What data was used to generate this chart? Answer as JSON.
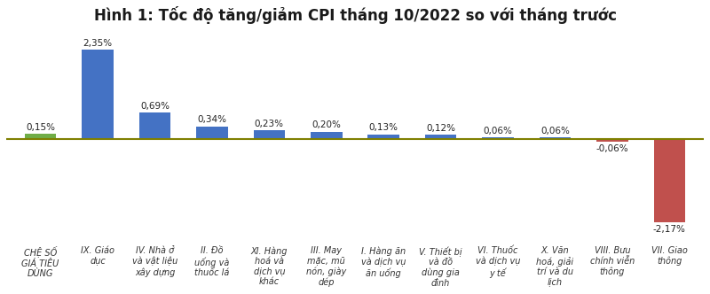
{
  "title": "Hình 1: Tốc độ tăng/giảm CPI tháng 10/2022 so với tháng trước",
  "categories": [
    "CHỆ SỐ\nGIÁ TIÊU\nDÙNG",
    "IX. Giáo\ndục",
    "IV. Nhà ở\nvà vật liệu\nxây dựng",
    "II. Đồ\nuống và\nthuốc lá",
    "XI. Hàng\nhoá và\ndịch vụ\nkhác",
    "III. May\nmặc, mũ\nnón, giày\ndép",
    "I. Hàng ăn\nvà dịch vụ\năn uống",
    "V. Thiết bị\nvà đồ\ndùng gia\nđình",
    "VI. Thuốc\nvà dịch vụ\ny tế",
    "X. Văn\nhoá, giải\ntrí và du\nlịch",
    "VIII. Bưu\nchính viễn\nthông",
    "VII. Giao\nthông"
  ],
  "values": [
    0.15,
    2.35,
    0.69,
    0.34,
    0.23,
    0.2,
    0.13,
    0.12,
    0.06,
    0.06,
    -0.06,
    -2.17
  ],
  "bar_colors": [
    "#70ad47",
    "#4472c4",
    "#4472c4",
    "#4472c4",
    "#4472c4",
    "#4472c4",
    "#4472c4",
    "#4472c4",
    "#4472c4",
    "#4472c4",
    "#c0504d",
    "#c0504d"
  ],
  "value_labels": [
    "0,15%",
    "2,35%",
    "0,69%",
    "0,34%",
    "0,23%",
    "0,20%",
    "0,13%",
    "0,12%",
    "0,06%",
    "0,06%",
    "-0,06%",
    "-2,17%"
  ],
  "ylim": [
    -2.7,
    2.85
  ],
  "background_color": "#ffffff",
  "title_fontsize": 12,
  "label_fontsize": 7.5,
  "tick_fontsize": 7.0,
  "zeroline_color": "#7f7f00",
  "gridline_color": "#c8c8c8"
}
